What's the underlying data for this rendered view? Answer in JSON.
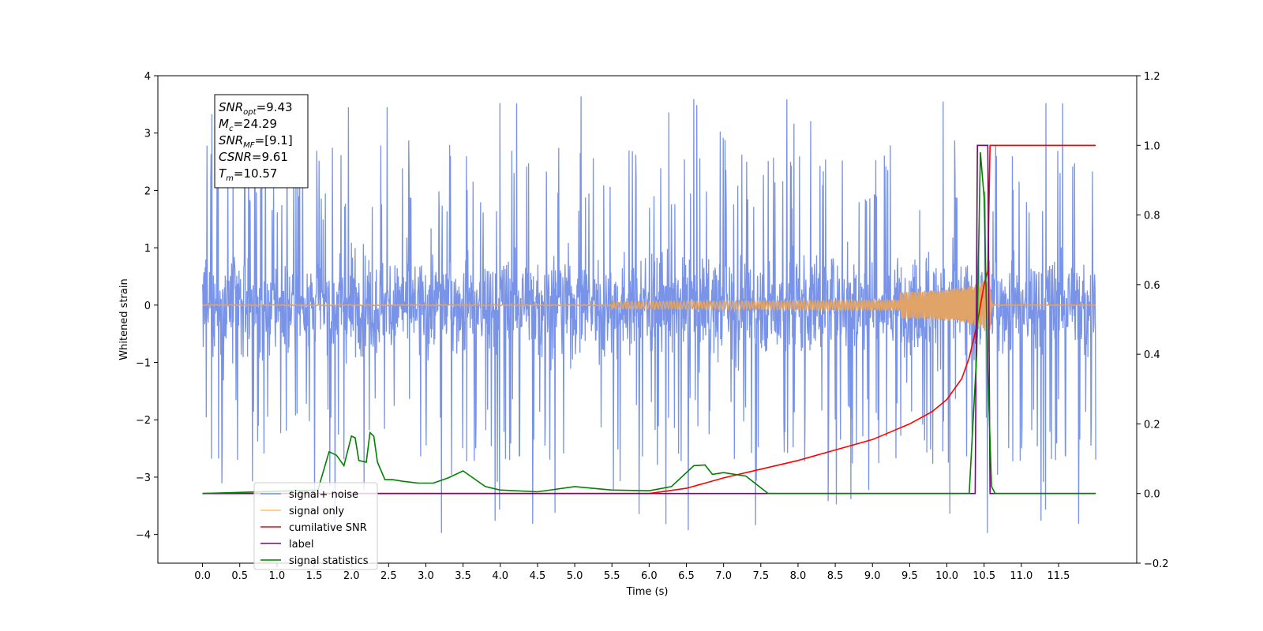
{
  "chart_data": {
    "type": "line",
    "xlabel": "Time (s)",
    "ylabel": "Whitened strain",
    "xlim": [
      -0.6,
      12.55
    ],
    "ylim": [
      -4.5,
      4.0
    ],
    "ylim_right": [
      -0.2,
      1.2
    ],
    "x_ticks": [
      "0.0",
      "0.5",
      "1.0",
      "1.5",
      "2.0",
      "2.5",
      "3.0",
      "3.5",
      "4.0",
      "4.5",
      "5.0",
      "5.5",
      "6.0",
      "6.5",
      "7.0",
      "7.5",
      "8.0",
      "8.5",
      "9.0",
      "9.5",
      "10.0",
      "10.5",
      "11.0",
      "11.5"
    ],
    "y_ticks_left": [
      "4",
      "3",
      "2",
      "1",
      "0",
      "−1",
      "−2",
      "−3",
      "−4"
    ],
    "y_ticks_right": [
      "1.2",
      "1.0",
      "0.8",
      "0.6",
      "0.4",
      "0.2",
      "0.0",
      "−0.2"
    ],
    "annotation": [
      {
        "main": "SNR",
        "sub": "opt",
        "rest": "=9.43"
      },
      {
        "main": "M",
        "sub": "c",
        "rest": "=24.29"
      },
      {
        "main": "SNR",
        "sub": "MF",
        "rest": "=[9.1]"
      },
      {
        "main": "CSNR",
        "sub": "",
        "rest": "=9.61"
      },
      {
        "main": "T",
        "sub": "m",
        "rest": "=10.57"
      }
    ],
    "legend": {
      "position": "lower-left",
      "entries": [
        {
          "label": "signal+ noise",
          "color": "#7893e8"
        },
        {
          "label": "signal only",
          "color": "#ffbf6b"
        },
        {
          "label": "cumilative SNR",
          "color": "#ff0000"
        },
        {
          "label": "label",
          "color": "#800080"
        },
        {
          "label": "signal statistics",
          "color": "#008000"
        }
      ]
    },
    "series": [
      {
        "name": "signal+ noise",
        "axis": "left",
        "kind": "noise",
        "color": "#7893e8",
        "x_range": [
          0.0,
          12.0
        ],
        "typical_range": [
          -1.5,
          1.5
        ],
        "extreme_range": [
          -4.1,
          3.65
        ]
      },
      {
        "name": "signal only",
        "axis": "left",
        "kind": "chirp",
        "color": "#e0a468",
        "x_range": [
          0.0,
          12.0
        ],
        "merger_time": 10.57,
        "peak_amplitude": 0.95
      },
      {
        "name": "cumilative SNR",
        "axis": "right",
        "color": "#ff0000",
        "x": [
          0.0,
          6.0,
          6.5,
          7.0,
          7.5,
          8.0,
          8.5,
          9.0,
          9.5,
          9.8,
          10.0,
          10.2,
          10.3,
          10.4,
          10.45,
          10.5,
          10.55,
          10.58,
          12.0
        ],
        "y": [
          0.0,
          0.0,
          0.015,
          0.045,
          0.07,
          0.095,
          0.125,
          0.155,
          0.2,
          0.235,
          0.27,
          0.33,
          0.39,
          0.48,
          0.54,
          0.6,
          0.64,
          1.0,
          1.0
        ]
      },
      {
        "name": "label",
        "axis": "right",
        "color": "#800080",
        "x": [
          0.0,
          10.38,
          10.41,
          10.55,
          10.58,
          12.0
        ],
        "y": [
          0.0,
          0.0,
          1.0,
          1.0,
          0.0,
          0.0
        ]
      },
      {
        "name": "signal statistics",
        "axis": "right",
        "color": "#008000",
        "x": [
          0.0,
          1.55,
          1.7,
          1.8,
          1.9,
          2.0,
          2.05,
          2.1,
          2.2,
          2.25,
          2.3,
          2.35,
          2.45,
          2.55,
          2.7,
          2.9,
          3.1,
          3.3,
          3.5,
          3.6,
          3.8,
          4.0,
          4.5,
          5.0,
          5.5,
          6.0,
          6.3,
          6.6,
          6.75,
          6.85,
          7.0,
          7.3,
          7.6,
          10.3,
          10.4,
          10.45,
          10.5,
          10.55,
          10.6,
          10.65,
          12.0
        ],
        "y": [
          0.0,
          0.01,
          0.12,
          0.11,
          0.08,
          0.165,
          0.16,
          0.095,
          0.09,
          0.175,
          0.165,
          0.09,
          0.04,
          0.04,
          0.035,
          0.03,
          0.03,
          0.045,
          0.065,
          0.05,
          0.02,
          0.01,
          0.005,
          0.02,
          0.01,
          0.008,
          0.02,
          0.08,
          0.082,
          0.055,
          0.06,
          0.05,
          0.0,
          0.0,
          0.4,
          0.98,
          0.85,
          0.35,
          0.02,
          0.0,
          0.0
        ]
      }
    ]
  }
}
